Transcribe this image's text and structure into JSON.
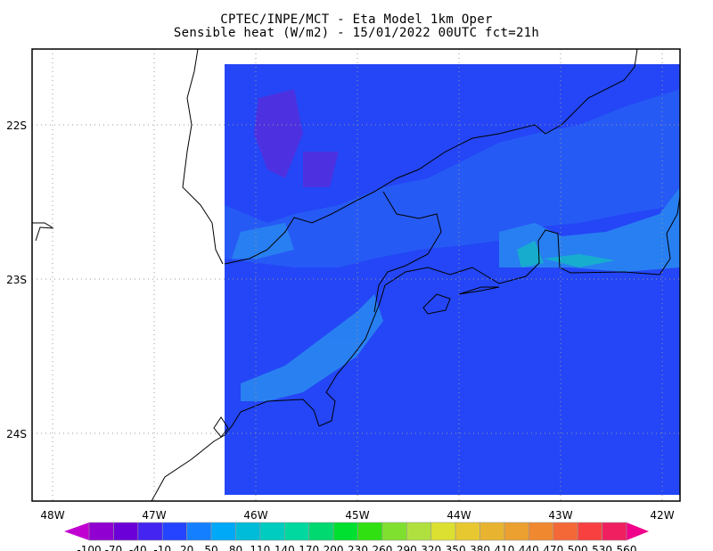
{
  "title": {
    "line1": "CPTEC/INPE/MCT -  Eta Model 1km Oper",
    "line2": "Sensible heat (W/m2) - 15/01/2022 00UTC fct=21h"
  },
  "axes": {
    "lon_ticks": [
      "48W",
      "47W",
      "46W",
      "45W",
      "44W",
      "43W",
      "42W"
    ],
    "lat_ticks": [
      "22S",
      "23S",
      "24S"
    ]
  },
  "field_color": "#2446f6",
  "colorbar": {
    "levels": [
      "-100",
      "-70",
      "-40",
      "-10",
      "20",
      "50",
      "80",
      "110",
      "140",
      "170",
      "200",
      "230",
      "260",
      "290",
      "320",
      "350",
      "380",
      "410",
      "440",
      "470",
      "500",
      "530",
      "560"
    ],
    "colors": [
      "#9000d0",
      "#6c00d8",
      "#4424f0",
      "#2444ff",
      "#1480ff",
      "#00a8f8",
      "#00bcd8",
      "#00ccc0",
      "#00d8a0",
      "#00d870",
      "#00e030",
      "#30e010",
      "#80e030",
      "#b0e040",
      "#dce030",
      "#e8c830",
      "#e8b430",
      "#eca030",
      "#f08830",
      "#f46838",
      "#f84040",
      "#f02060"
    ],
    "under_color": "#c000d0",
    "over_color": "#f0008a"
  }
}
